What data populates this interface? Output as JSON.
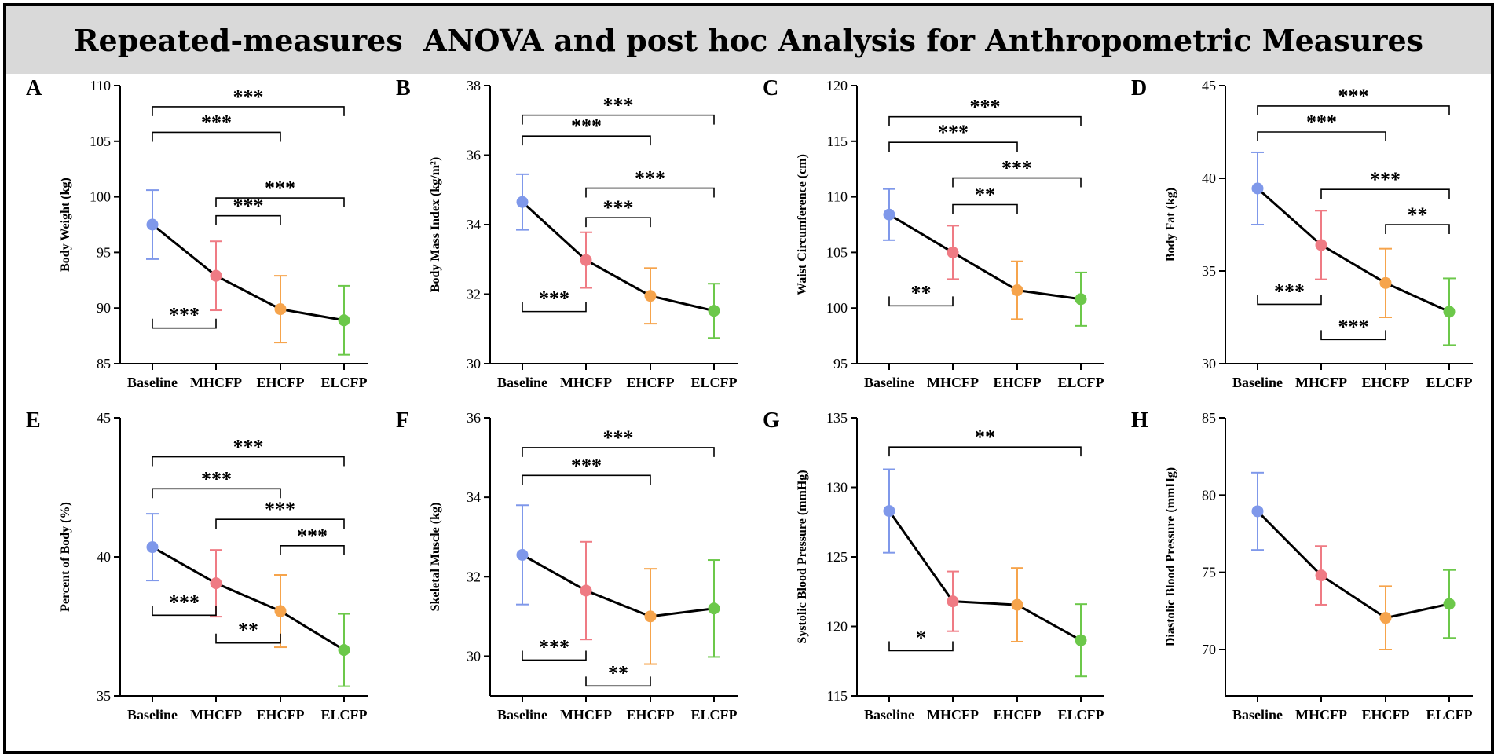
{
  "figure": {
    "title": "Repeated-measures  ANOVA and post hoc Analysis for Anthropometric Measures"
  },
  "colors": {
    "Baseline": "#7f98ea",
    "MHCFP": "#ef7b84",
    "EHCFP": "#f6a44c",
    "ELCFP": "#6cc84a",
    "line": "#000000"
  },
  "chart_data": [
    {
      "type": "line",
      "panel": "A",
      "categories": [
        "Baseline",
        "MHCFP",
        "EHCFP",
        "ELCFP"
      ],
      "values": [
        97.5,
        92.9,
        89.9,
        88.9
      ],
      "error": [
        3.1,
        3.1,
        3.0,
        3.1
      ],
      "ylabel": "Body Weight (kg)",
      "ylim": [
        85,
        110
      ],
      "yticks": [
        85,
        90,
        95,
        100,
        105,
        110
      ],
      "brackets": [
        {
          "from": 0,
          "to": 3,
          "y": 108.1,
          "label": "***",
          "dir": "down"
        },
        {
          "from": 0,
          "to": 2,
          "y": 105.8,
          "label": "***",
          "dir": "down"
        },
        {
          "from": 1,
          "to": 3,
          "y": 99.9,
          "label": "***",
          "dir": "down"
        },
        {
          "from": 1,
          "to": 2,
          "y": 98.3,
          "label": "***",
          "dir": "down"
        },
        {
          "from": 0,
          "to": 1,
          "y": 88.2,
          "label": "***",
          "dir": "up"
        }
      ]
    },
    {
      "type": "line",
      "panel": "B",
      "categories": [
        "Baseline",
        "MHCFP",
        "EHCFP",
        "ELCFP"
      ],
      "values": [
        34.65,
        32.98,
        31.95,
        31.52
      ],
      "error": [
        0.8,
        0.8,
        0.8,
        0.78
      ],
      "ylabel": "Body Mass Index (kg/m²)",
      "ylim": [
        30,
        38
      ],
      "yticks": [
        30,
        32,
        34,
        36,
        38
      ],
      "brackets": [
        {
          "from": 0,
          "to": 3,
          "y": 37.15,
          "label": "***",
          "dir": "down"
        },
        {
          "from": 0,
          "to": 2,
          "y": 36.55,
          "label": "***",
          "dir": "down"
        },
        {
          "from": 1,
          "to": 3,
          "y": 35.05,
          "label": "***",
          "dir": "down"
        },
        {
          "from": 1,
          "to": 2,
          "y": 34.2,
          "label": "***",
          "dir": "down"
        },
        {
          "from": 0,
          "to": 1,
          "y": 31.5,
          "label": "***",
          "dir": "up"
        }
      ]
    },
    {
      "type": "line",
      "panel": "C",
      "categories": [
        "Baseline",
        "MHCFP",
        "EHCFP",
        "ELCFP"
      ],
      "values": [
        108.4,
        105.0,
        101.6,
        100.8
      ],
      "error": [
        2.3,
        2.4,
        2.6,
        2.4
      ],
      "ylabel": "Waist Circumference (cm)",
      "ylim": [
        95,
        120
      ],
      "yticks": [
        95,
        100,
        105,
        110,
        115,
        120
      ],
      "brackets": [
        {
          "from": 0,
          "to": 3,
          "y": 117.2,
          "label": "***",
          "dir": "down"
        },
        {
          "from": 0,
          "to": 2,
          "y": 114.9,
          "label": "***",
          "dir": "down"
        },
        {
          "from": 1,
          "to": 3,
          "y": 111.7,
          "label": "***",
          "dir": "down"
        },
        {
          "from": 1,
          "to": 2,
          "y": 109.3,
          "label": "**",
          "dir": "down"
        },
        {
          "from": 0,
          "to": 1,
          "y": 100.2,
          "label": "**",
          "dir": "up"
        }
      ]
    },
    {
      "type": "line",
      "panel": "D",
      "categories": [
        "Baseline",
        "MHCFP",
        "EHCFP",
        "ELCFP"
      ],
      "values": [
        39.45,
        36.4,
        34.35,
        32.8
      ],
      "error": [
        1.95,
        1.85,
        1.85,
        1.8
      ],
      "ylabel": "Body Fat (kg)",
      "ylim": [
        30,
        45
      ],
      "yticks": [
        30,
        35,
        40,
        45
      ],
      "brackets": [
        {
          "from": 0,
          "to": 3,
          "y": 43.9,
          "label": "***",
          "dir": "down"
        },
        {
          "from": 0,
          "to": 2,
          "y": 42.5,
          "label": "***",
          "dir": "down"
        },
        {
          "from": 1,
          "to": 3,
          "y": 39.4,
          "label": "***",
          "dir": "down"
        },
        {
          "from": 2,
          "to": 3,
          "y": 37.5,
          "label": "**",
          "dir": "down"
        },
        {
          "from": 0,
          "to": 1,
          "y": 33.2,
          "label": "***",
          "dir": "up"
        },
        {
          "from": 1,
          "to": 2,
          "y": 31.3,
          "label": "***",
          "dir": "up"
        }
      ]
    },
    {
      "type": "line",
      "panel": "E",
      "categories": [
        "Baseline",
        "MHCFP",
        "EHCFP",
        "ELCFP"
      ],
      "values": [
        40.35,
        39.05,
        38.05,
        36.65
      ],
      "error": [
        1.2,
        1.2,
        1.3,
        1.3
      ],
      "ylabel": "Percent of Body (%)",
      "ylim": [
        35,
        45
      ],
      "yticks": [
        35,
        40,
        45
      ],
      "brackets": [
        {
          "from": 0,
          "to": 3,
          "y": 43.6,
          "label": "***",
          "dir": "down"
        },
        {
          "from": 0,
          "to": 2,
          "y": 42.45,
          "label": "***",
          "dir": "down"
        },
        {
          "from": 1,
          "to": 3,
          "y": 41.35,
          "label": "***",
          "dir": "down"
        },
        {
          "from": 2,
          "to": 3,
          "y": 40.4,
          "label": "***",
          "dir": "down"
        },
        {
          "from": 0,
          "to": 1,
          "y": 37.9,
          "label": "***",
          "dir": "up"
        },
        {
          "from": 1,
          "to": 2,
          "y": 36.9,
          "label": "**",
          "dir": "up"
        }
      ]
    },
    {
      "type": "line",
      "panel": "F",
      "categories": [
        "Baseline",
        "MHCFP",
        "EHCFP",
        "ELCFP"
      ],
      "values": [
        32.55,
        31.65,
        31.0,
        31.2
      ],
      "error": [
        1.25,
        1.23,
        1.2,
        1.22
      ],
      "ylabel": "Skeletal Muscle (kg)",
      "ylim": [
        29,
        36
      ],
      "yticks": [
        30,
        32,
        34,
        36
      ],
      "brackets": [
        {
          "from": 0,
          "to": 3,
          "y": 35.25,
          "label": "***",
          "dir": "down"
        },
        {
          "from": 0,
          "to": 2,
          "y": 34.55,
          "label": "***",
          "dir": "down"
        },
        {
          "from": 0,
          "to": 1,
          "y": 29.9,
          "label": "***",
          "dir": "up"
        },
        {
          "from": 1,
          "to": 2,
          "y": 29.25,
          "label": "**",
          "dir": "up"
        }
      ]
    },
    {
      "type": "line",
      "panel": "G",
      "categories": [
        "Baseline",
        "MHCFP",
        "EHCFP",
        "ELCFP"
      ],
      "values": [
        128.3,
        121.8,
        121.55,
        119.0
      ],
      "error": [
        3.0,
        2.15,
        2.65,
        2.6
      ],
      "ylabel": "Systolic Blood Pressure (mmHg)",
      "ylim": [
        115,
        135
      ],
      "yticks": [
        115,
        120,
        125,
        130,
        135
      ],
      "brackets": [
        {
          "from": 0,
          "to": 3,
          "y": 132.9,
          "label": "**",
          "dir": "down"
        },
        {
          "from": 0,
          "to": 1,
          "y": 118.25,
          "label": "*",
          "dir": "up"
        }
      ]
    },
    {
      "type": "line",
      "panel": "H",
      "categories": [
        "Baseline",
        "MHCFP",
        "EHCFP",
        "ELCFP"
      ],
      "values": [
        78.95,
        74.8,
        72.05,
        72.95
      ],
      "error": [
        2.5,
        1.9,
        2.05,
        2.2
      ],
      "ylabel": "Diastolic Blood Pressure (mmHg)",
      "ylim": [
        67,
        85
      ],
      "yticks": [
        70,
        75,
        80,
        85
      ],
      "brackets": []
    }
  ]
}
